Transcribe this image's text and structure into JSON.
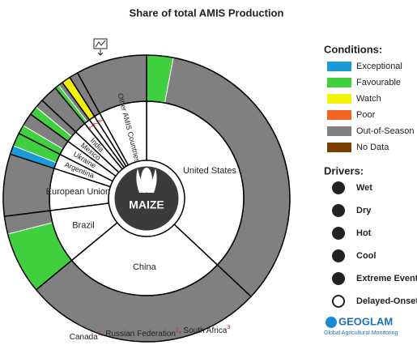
{
  "chart_data": {
    "type": "donut",
    "title": "Share of total AMIS Production",
    "center_label": "MAIZE",
    "categories": [
      "United States",
      "China",
      "Brazil",
      "European Union",
      "Argentina",
      "Ukraine",
      "Mexico",
      "India",
      "1",
      "2",
      "3",
      "Other AMIS Countries"
    ],
    "values": [
      37,
      27,
      9,
      7,
      2.5,
      2.5,
      2,
      2,
      1,
      1,
      1,
      8
    ],
    "legend_title": "Conditions:",
    "series": [
      {
        "name": "Exceptional",
        "color": "#1a9ad6",
        "values": [
          0,
          0,
          0,
          0,
          1,
          0,
          0,
          0,
          0,
          0,
          0,
          0
        ]
      },
      {
        "name": "Favourable",
        "color": "#3fcf3f",
        "values": [
          3,
          0,
          7,
          0,
          1.5,
          1,
          1,
          0,
          0.5,
          0,
          0,
          0
        ]
      },
      {
        "name": "Watch",
        "color": "#f2f20a",
        "values": [
          0,
          0,
          0,
          0,
          0,
          0,
          0,
          0,
          0,
          1,
          0,
          0
        ]
      },
      {
        "name": "Poor",
        "color": "#f26522",
        "values": [
          0,
          0,
          0,
          0,
          0,
          0,
          0,
          0,
          0,
          0,
          0,
          0
        ]
      },
      {
        "name": "Out-of-Season",
        "color": "#808080",
        "values": [
          34,
          27,
          2,
          7,
          0,
          1.5,
          1,
          2,
          0.5,
          0,
          1,
          8
        ]
      },
      {
        "name": "No Data",
        "color": "#7b3f00",
        "values": [
          0,
          0,
          0,
          0,
          0,
          0,
          0,
          0,
          0,
          0,
          0,
          0
        ]
      }
    ],
    "drivers_title": "Drivers:",
    "drivers": [
      "Wet",
      "Dry",
      "Hot",
      "Cool",
      "Extreme Event",
      "Delayed-Onset"
    ],
    "logo": "GEOGLAM",
    "logo_subtitle": "Global Agricultural Monitoring",
    "footnote": [
      {
        "text": "Canada",
        "mark": "1"
      },
      {
        "text": ". Russian Federation",
        "mark": "2"
      },
      {
        "text": ". South Africa",
        "mark": "3"
      }
    ]
  }
}
